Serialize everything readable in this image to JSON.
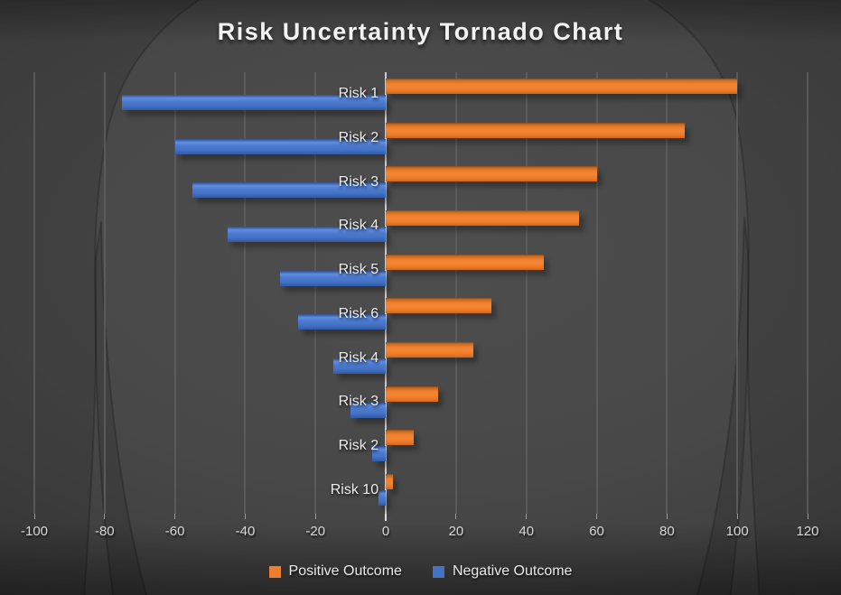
{
  "chart_data": {
    "type": "bar",
    "orientation": "horizontal-tornado",
    "title": "Risk Uncertainty Tornado Chart",
    "categories": [
      "Risk 1",
      "Risk 2",
      "Risk 3",
      "Risk 4",
      "Risk 5",
      "Risk 6",
      "Risk 4",
      "Risk 3",
      "Risk 2",
      "Risk 10"
    ],
    "series": [
      {
        "name": "Positive Outcome",
        "color": "#ED7D31",
        "values": [
          100,
          85,
          60,
          55,
          45,
          30,
          25,
          15,
          8,
          2
        ]
      },
      {
        "name": "Negative Outcome",
        "color": "#4472C4",
        "values": [
          -75,
          -60,
          -55,
          -45,
          -30,
          -25,
          -15,
          -10,
          -4,
          -2
        ]
      }
    ],
    "xlim": [
      -100,
      120
    ],
    "x_ticks": [
      -100,
      -80,
      -60,
      -40,
      -20,
      0,
      20,
      40,
      60,
      80,
      100,
      120
    ],
    "grid": true,
    "legend_position": "bottom"
  },
  "colors": {
    "background": "#3F3F3F",
    "positive": "#ED7D31",
    "negative": "#4472C4",
    "gridline": "#5E5E5E",
    "zero_axis": "#CBCBCB",
    "title_text": "#F2F2F2",
    "tick_text": "#D9D9D9",
    "category_text": "#ECECEC"
  }
}
